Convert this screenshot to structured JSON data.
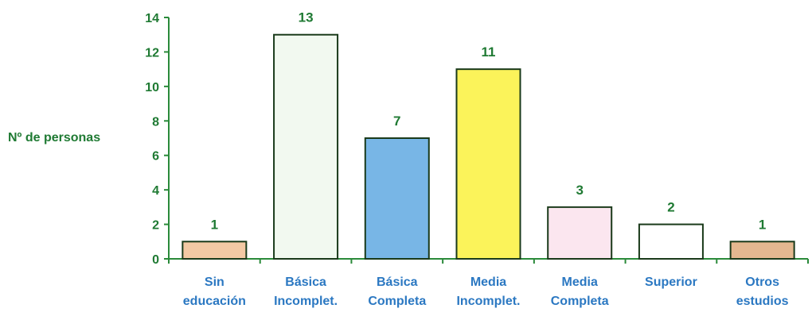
{
  "chart_data": {
    "type": "bar",
    "title": "",
    "xlabel": "",
    "ylabel": "Nº de personas",
    "ylim": [
      0,
      14
    ],
    "yticks": [
      0,
      2,
      4,
      6,
      8,
      10,
      12,
      14
    ],
    "grid": false,
    "categories": [
      [
        "Sin",
        "educación"
      ],
      [
        "Básica",
        "Incomplet."
      ],
      [
        "Básica",
        "Completa"
      ],
      [
        "Media",
        "Incomplet."
      ],
      [
        "Media",
        "Completa"
      ],
      [
        "Superior"
      ],
      [
        "Otros",
        "estudios"
      ]
    ],
    "values": [
      1,
      13,
      7,
      11,
      3,
      2,
      1
    ],
    "data_labels": [
      "1",
      "13",
      "7",
      "11",
      "3",
      "2",
      "1"
    ],
    "bar_colors": [
      "#f3c9a4",
      "#f2f9f0",
      "#78b6e6",
      "#fbf35a",
      "#fbe6ef",
      "#ffffff",
      "#e4b890"
    ],
    "colors": {
      "axis": "#2a8a3a",
      "text": "#1f7a33",
      "category_text": "#2b78c2",
      "bar_edge": "#1a3a1a"
    }
  }
}
